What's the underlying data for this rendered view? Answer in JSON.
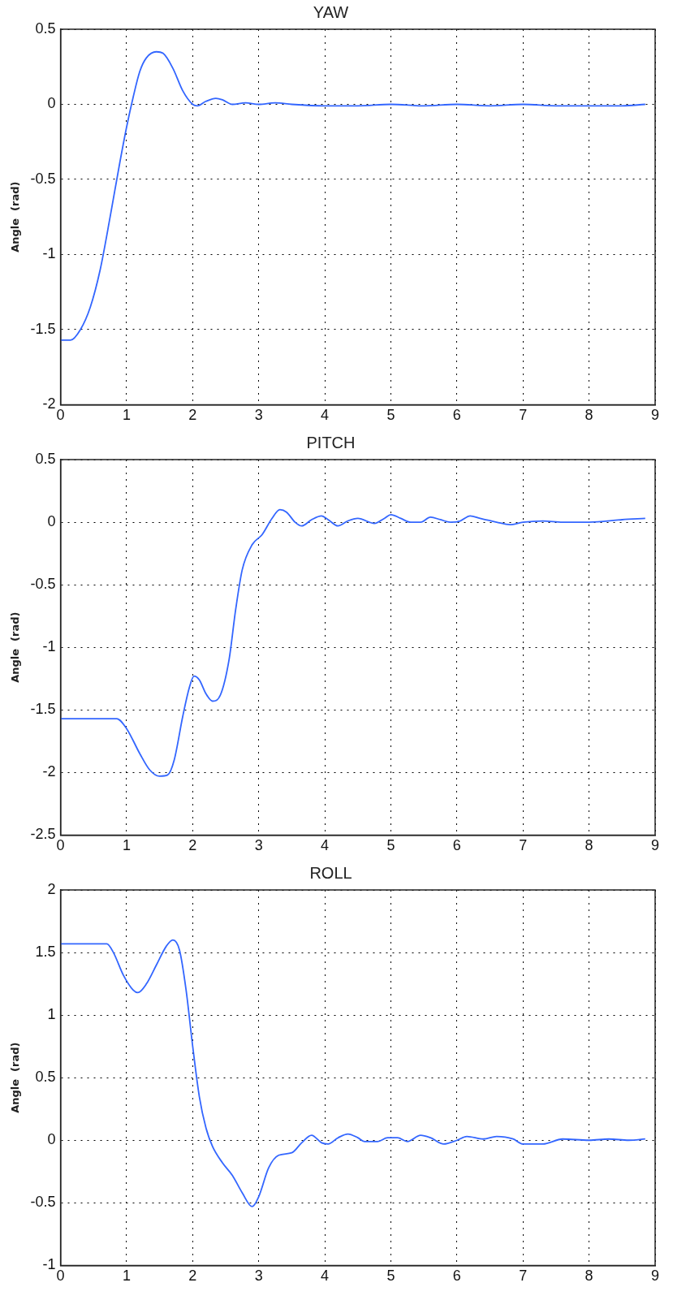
{
  "chart_data": [
    {
      "type": "line",
      "title": "YAW",
      "ylabel": "Angle  (rad)",
      "xlim": [
        0,
        9
      ],
      "xticks": [
        0,
        1,
        2,
        3,
        4,
        5,
        6,
        7,
        8,
        9
      ],
      "ylim": [
        -2,
        0.5
      ],
      "yticks": [
        -2,
        -1.5,
        -1,
        -0.5,
        0,
        0.5
      ],
      "grid": true,
      "marker": "none",
      "line_style": "solid",
      "x": [
        0,
        0.15,
        0.3,
        0.45,
        0.6,
        0.75,
        0.9,
        1.0,
        1.1,
        1.2,
        1.3,
        1.45,
        1.55,
        1.7,
        1.85,
        2.0,
        2.07,
        2.2,
        2.35,
        2.45,
        2.6,
        2.8,
        3.0,
        3.25,
        3.5,
        4.0,
        4.5,
        5.0,
        5.5,
        6.0,
        6.5,
        7.0,
        7.5,
        8.0,
        8.5,
        8.85
      ],
      "series": [
        {
          "color": "#3366ff",
          "values": [
            -1.57,
            -1.57,
            -1.5,
            -1.35,
            -1.1,
            -0.75,
            -0.38,
            -0.15,
            0.05,
            0.22,
            0.31,
            0.35,
            0.34,
            0.24,
            0.09,
            0.0,
            -0.01,
            0.02,
            0.04,
            0.03,
            0.0,
            0.01,
            0.0,
            0.01,
            0.0,
            -0.01,
            -0.01,
            0.0,
            -0.01,
            0.0,
            -0.01,
            0.0,
            -0.01,
            -0.01,
            -0.01,
            0.0
          ]
        }
      ]
    },
    {
      "type": "line",
      "title": "PITCH",
      "ylabel": "Angle  (rad)",
      "xlim": [
        0,
        9
      ],
      "xticks": [
        0,
        1,
        2,
        3,
        4,
        5,
        6,
        7,
        8,
        9
      ],
      "ylim": [
        -2.5,
        0.5
      ],
      "yticks": [
        -2.5,
        -2,
        -1.5,
        -1,
        -0.5,
        0,
        0.5
      ],
      "grid": true,
      "marker": "none",
      "line_style": "solid",
      "x": [
        0,
        0.85,
        1.0,
        1.2,
        1.35,
        1.5,
        1.62,
        1.72,
        1.85,
        1.95,
        2.02,
        2.1,
        2.2,
        2.3,
        2.42,
        2.55,
        2.65,
        2.75,
        2.9,
        3.05,
        3.2,
        3.32,
        3.42,
        3.55,
        3.65,
        3.8,
        3.95,
        4.05,
        4.2,
        4.35,
        4.5,
        4.75,
        4.9,
        5.0,
        5.15,
        5.3,
        5.45,
        5.6,
        5.75,
        5.9,
        6.05,
        6.2,
        6.35,
        6.6,
        6.8,
        7.0,
        7.3,
        7.6,
        8.0,
        8.5,
        8.85
      ],
      "series": [
        {
          "color": "#3366ff",
          "values": [
            -1.57,
            -1.57,
            -1.65,
            -1.85,
            -1.98,
            -2.03,
            -2.02,
            -1.9,
            -1.55,
            -1.32,
            -1.23,
            -1.26,
            -1.37,
            -1.43,
            -1.38,
            -1.1,
            -0.7,
            -0.38,
            -0.18,
            -0.1,
            0.03,
            0.1,
            0.08,
            0.0,
            -0.03,
            0.02,
            0.05,
            0.02,
            -0.03,
            0.01,
            0.03,
            -0.01,
            0.03,
            0.06,
            0.03,
            0.0,
            0.0,
            0.04,
            0.02,
            0.0,
            0.01,
            0.05,
            0.03,
            0.0,
            -0.02,
            0.0,
            0.01,
            0.0,
            0.0,
            0.02,
            0.03
          ]
        }
      ]
    },
    {
      "type": "line",
      "title": "ROLL",
      "ylabel": "Angle  (rad)",
      "xlim": [
        0,
        9
      ],
      "xticks": [
        0,
        1,
        2,
        3,
        4,
        5,
        6,
        7,
        8,
        9
      ],
      "ylim": [
        -1,
        2
      ],
      "yticks": [
        -1,
        -0.5,
        0,
        0.5,
        1,
        1.5,
        2
      ],
      "grid": true,
      "marker": "none",
      "line_style": "solid",
      "x": [
        0,
        0.7,
        0.8,
        0.95,
        1.1,
        1.17,
        1.3,
        1.45,
        1.6,
        1.7,
        1.8,
        1.9,
        2.0,
        2.1,
        2.2,
        2.3,
        2.45,
        2.6,
        2.75,
        2.9,
        3.0,
        3.15,
        3.3,
        3.5,
        3.65,
        3.8,
        3.95,
        4.05,
        4.2,
        4.35,
        4.5,
        4.6,
        4.8,
        4.95,
        5.1,
        5.25,
        5.45,
        5.6,
        5.8,
        6.0,
        6.15,
        6.4,
        6.6,
        6.85,
        7.0,
        7.3,
        7.6,
        8.0,
        8.3,
        8.6,
        8.85
      ],
      "series": [
        {
          "color": "#3366ff",
          "values": [
            1.57,
            1.57,
            1.5,
            1.32,
            1.2,
            1.18,
            1.25,
            1.4,
            1.55,
            1.6,
            1.52,
            1.2,
            0.75,
            0.35,
            0.1,
            -0.05,
            -0.18,
            -0.28,
            -0.42,
            -0.53,
            -0.45,
            -0.22,
            -0.12,
            -0.1,
            -0.02,
            0.04,
            -0.02,
            -0.03,
            0.02,
            0.05,
            0.02,
            -0.01,
            -0.01,
            0.02,
            0.02,
            -0.01,
            0.04,
            0.02,
            -0.03,
            0.0,
            0.03,
            0.01,
            0.03,
            0.01,
            -0.03,
            -0.03,
            0.01,
            0.0,
            0.01,
            0.0,
            0.01
          ]
        }
      ]
    }
  ]
}
